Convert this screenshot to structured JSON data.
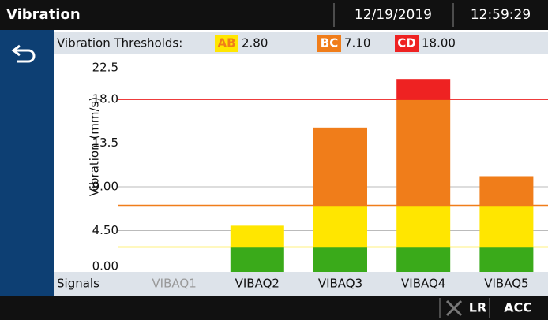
{
  "header": {
    "title": "Vibration",
    "date": "12/19/2019",
    "time": "12:59:29"
  },
  "chart_data": {
    "type": "bar",
    "stacked": true,
    "thresholds_label": "Vibration Thresholds:",
    "thresholds": [
      {
        "label": "AB",
        "value": 2.8,
        "value_label": "2.80",
        "color": "#ffe600",
        "text_color": "#f07d1a"
      },
      {
        "label": "BC",
        "value": 7.1,
        "value_label": "7.10",
        "color": "#f07d1a",
        "text_color": "#ffffff"
      },
      {
        "label": "CD",
        "value": 18,
        "value_label": "18.00",
        "color": "#ee2222",
        "text_color": "#ffffff"
      }
    ],
    "ylabel": "Vibration (mm/s)",
    "xlabel": "Signals",
    "categories": [
      "VIBAQ1",
      "VIBAQ2",
      "VIBAQ3",
      "VIBAQ4",
      "VIBAQ5"
    ],
    "series": [
      {
        "color": "#3aaa1a",
        "values": [
          0,
          2.8,
          2.8,
          2.8,
          2.8
        ]
      },
      {
        "color": "#ffe600",
        "values": [
          0,
          2.2,
          4.3,
          4.3,
          4.3
        ]
      },
      {
        "color": "#f07d1a",
        "values": [
          0,
          0,
          8.0,
          10.9,
          3.0
        ]
      },
      {
        "color": "#ee2222",
        "values": [
          0,
          0,
          0,
          2.1,
          0
        ]
      }
    ],
    "ylim": [
      0,
      22.5
    ],
    "yticks": [
      {
        "value": 0,
        "label": "0.00"
      },
      {
        "value": 4.5,
        "label": "4.50"
      },
      {
        "value": 9,
        "label": "9.00"
      },
      13.5,
      {
        "value": 18,
        "label": "18.0"
      },
      22.5
    ],
    "grid": true
  },
  "footer": {
    "mode": "LR",
    "source": "ACC"
  }
}
